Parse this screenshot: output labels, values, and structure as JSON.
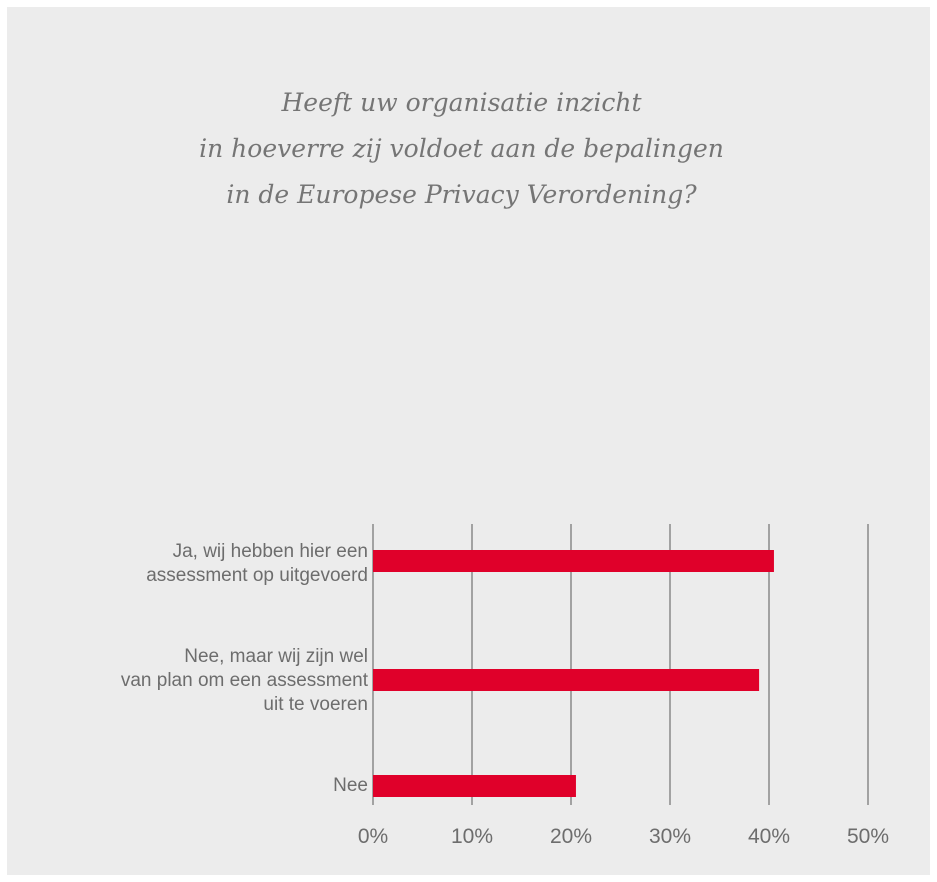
{
  "title_lines": [
    "Heeft uw organisatie inzicht",
    "in hoeverre zij voldoet aan de bepalingen",
    "in de Europese Privacy Verordening?"
  ],
  "chart_data": {
    "type": "bar",
    "orientation": "horizontal",
    "title": "Heeft uw organisatie inzicht in hoeverre zij voldoet aan de bepalingen in de Europese Privacy Verordening?",
    "categories": [
      "Ja, wij hebben hier een assessment op uitgevoerd",
      "Nee, maar wij zijn wel van plan om een assessment uit te voeren",
      "Nee"
    ],
    "category_label_lines": [
      [
        "Ja, wij hebben hier een",
        "assessment op uitgevoerd"
      ],
      [
        "Nee, maar wij zijn wel",
        "van plan om een assessment",
        "uit te voeren"
      ],
      [
        "Nee"
      ]
    ],
    "values": [
      40.5,
      39,
      20.5
    ],
    "unit": "%",
    "xlim": [
      0,
      50
    ],
    "ticks": [
      0,
      10,
      20,
      30,
      40,
      50
    ],
    "tick_labels": [
      "0%",
      "10%",
      "20%",
      "30%",
      "40%",
      "50%"
    ],
    "grid": true,
    "bar_color": "#e0002a",
    "grid_color": "#8a8a8a",
    "xlabel": "",
    "ylabel": ""
  }
}
